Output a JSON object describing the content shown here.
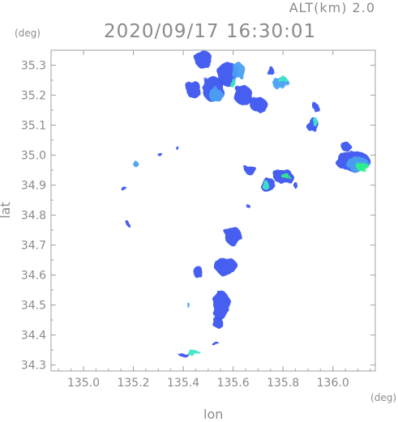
{
  "header": {
    "alt_label": "ALT(km) 2.0",
    "datetime": "2020/09/17 16:30:01"
  },
  "axes": {
    "y_unit": "(deg)",
    "x_unit": "(deg)",
    "x_label": "lon",
    "y_label": "lat"
  },
  "colors": {
    "axis": "#a0a0a0",
    "tick_text": "#8a8a8a",
    "echo_low": "#3d57f0",
    "echo_mid": "#4aa0f2",
    "echo_high": "#3fe6c8",
    "echo_peak": "#2ef08a"
  },
  "chart_data": {
    "type": "heatmap",
    "title": "2020/09/17 16:30:01",
    "xlabel": "lon",
    "ylabel": "lat",
    "xlim": [
      134.87,
      136.17
    ],
    "ylim": [
      34.28,
      35.35
    ],
    "x_ticks": [
      "135.0",
      "135.2",
      "135.4",
      "135.6",
      "135.8",
      "136.0"
    ],
    "y_ticks": [
      "34.3",
      "34.4",
      "34.5",
      "34.6",
      "34.7",
      "34.8",
      "34.9",
      "35.0",
      "35.1",
      "35.2",
      "35.3"
    ],
    "grid": false,
    "echo_cells": [
      {
        "lon": 135.48,
        "lat": 35.32,
        "w": 0.07,
        "h": 0.06,
        "level": 1
      },
      {
        "lon": 135.58,
        "lat": 35.27,
        "w": 0.09,
        "h": 0.08,
        "level": 1
      },
      {
        "lon": 135.52,
        "lat": 35.22,
        "w": 0.08,
        "h": 0.09,
        "level": 1
      },
      {
        "lon": 135.44,
        "lat": 35.22,
        "w": 0.06,
        "h": 0.06,
        "level": 1
      },
      {
        "lon": 135.64,
        "lat": 35.2,
        "w": 0.08,
        "h": 0.06,
        "level": 1
      },
      {
        "lon": 135.7,
        "lat": 35.17,
        "w": 0.07,
        "h": 0.05,
        "level": 1
      },
      {
        "lon": 135.62,
        "lat": 35.28,
        "w": 0.05,
        "h": 0.06,
        "level": 2
      },
      {
        "lon": 135.53,
        "lat": 35.2,
        "w": 0.05,
        "h": 0.05,
        "level": 2
      },
      {
        "lon": 135.6,
        "lat": 35.24,
        "w": 0.03,
        "h": 0.03,
        "level": 3
      },
      {
        "lon": 135.79,
        "lat": 35.24,
        "w": 0.07,
        "h": 0.04,
        "level": 2
      },
      {
        "lon": 135.8,
        "lat": 35.25,
        "w": 0.04,
        "h": 0.02,
        "level": 3
      },
      {
        "lon": 135.75,
        "lat": 35.28,
        "w": 0.03,
        "h": 0.03,
        "level": 1
      },
      {
        "lon": 135.92,
        "lat": 35.1,
        "w": 0.05,
        "h": 0.05,
        "level": 1
      },
      {
        "lon": 135.93,
        "lat": 35.11,
        "w": 0.02,
        "h": 0.03,
        "level": 3
      },
      {
        "lon": 135.93,
        "lat": 35.16,
        "w": 0.02,
        "h": 0.03,
        "level": 1
      },
      {
        "lon": 136.08,
        "lat": 34.98,
        "w": 0.14,
        "h": 0.07,
        "level": 1
      },
      {
        "lon": 136.1,
        "lat": 34.97,
        "w": 0.09,
        "h": 0.05,
        "level": 2
      },
      {
        "lon": 136.12,
        "lat": 34.96,
        "w": 0.05,
        "h": 0.03,
        "level": 4
      },
      {
        "lon": 136.05,
        "lat": 35.03,
        "w": 0.04,
        "h": 0.03,
        "level": 1
      },
      {
        "lon": 135.8,
        "lat": 34.93,
        "w": 0.08,
        "h": 0.05,
        "level": 1
      },
      {
        "lon": 135.81,
        "lat": 34.93,
        "w": 0.03,
        "h": 0.02,
        "level": 4
      },
      {
        "lon": 135.74,
        "lat": 34.9,
        "w": 0.06,
        "h": 0.05,
        "level": 1
      },
      {
        "lon": 135.73,
        "lat": 34.9,
        "w": 0.03,
        "h": 0.03,
        "level": 3
      },
      {
        "lon": 135.67,
        "lat": 34.95,
        "w": 0.05,
        "h": 0.03,
        "level": 1
      },
      {
        "lon": 135.6,
        "lat": 34.73,
        "w": 0.07,
        "h": 0.06,
        "level": 1
      },
      {
        "lon": 135.57,
        "lat": 34.63,
        "w": 0.09,
        "h": 0.06,
        "level": 1
      },
      {
        "lon": 135.55,
        "lat": 34.5,
        "w": 0.07,
        "h": 0.1,
        "level": 1
      },
      {
        "lon": 135.54,
        "lat": 34.44,
        "w": 0.04,
        "h": 0.04,
        "level": 1
      },
      {
        "lon": 135.46,
        "lat": 34.61,
        "w": 0.04,
        "h": 0.04,
        "level": 1
      },
      {
        "lon": 135.44,
        "lat": 34.34,
        "w": 0.06,
        "h": 0.015,
        "level": 3
      },
      {
        "lon": 135.4,
        "lat": 34.335,
        "w": 0.04,
        "h": 0.012,
        "level": 1
      },
      {
        "lon": 135.53,
        "lat": 34.37,
        "w": 0.03,
        "h": 0.015,
        "level": 1
      },
      {
        "lon": 135.42,
        "lat": 34.5,
        "w": 0.012,
        "h": 0.015,
        "level": 2
      },
      {
        "lon": 135.21,
        "lat": 34.97,
        "w": 0.02,
        "h": 0.02,
        "level": 2
      },
      {
        "lon": 135.31,
        "lat": 35.0,
        "w": 0.015,
        "h": 0.015,
        "level": 1
      },
      {
        "lon": 135.16,
        "lat": 34.89,
        "w": 0.02,
        "h": 0.02,
        "level": 1
      },
      {
        "lon": 135.85,
        "lat": 34.9,
        "w": 0.02,
        "h": 0.02,
        "level": 1
      },
      {
        "lon": 135.38,
        "lat": 35.02,
        "w": 0.012,
        "h": 0.012,
        "level": 1
      },
      {
        "lon": 135.18,
        "lat": 34.77,
        "w": 0.015,
        "h": 0.015,
        "level": 1
      },
      {
        "lon": 135.66,
        "lat": 34.83,
        "w": 0.015,
        "h": 0.012,
        "level": 1
      }
    ]
  }
}
